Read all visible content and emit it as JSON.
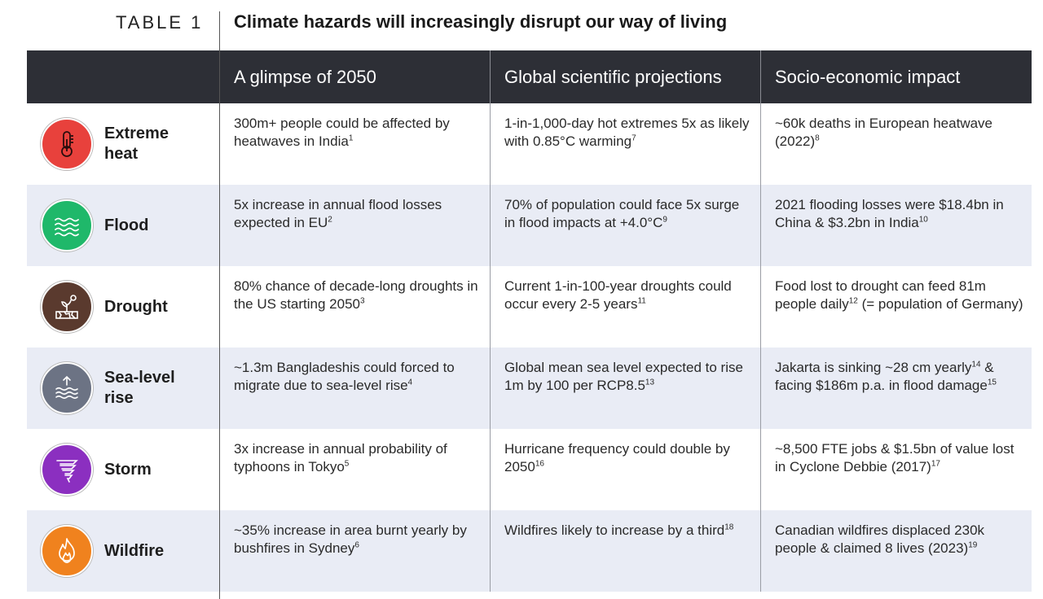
{
  "table_label": "TABLE 1",
  "title": "Climate hazards will increasingly disrupt our way of living",
  "headers": [
    "",
    "A glimpse of 2050",
    "Global scientific projections",
    "Socio-economic impact"
  ],
  "colors": {
    "header_bg": "#2d2f36",
    "row_shade": "#e9ecf5",
    "heat": "#e8413c",
    "flood": "#1fb86a",
    "drought": "#5a3a2e",
    "sea": "#6c7384",
    "storm": "#8b2fc0",
    "wildfire": "#f0821e"
  },
  "rows": [
    {
      "hazard": "Extreme heat",
      "icon": "thermometer-icon",
      "glimpse": "300m+ people could be affected by heatwaves in India",
      "glimpse_ref": "1",
      "projection": "1-in-1,000-day hot extremes 5x as likely with 0.85°C warming",
      "projection_ref": "7",
      "impact": "~60k deaths in European heatwave (2022)",
      "impact_ref": "8"
    },
    {
      "hazard": "Flood",
      "icon": "waves-icon",
      "glimpse": "5x increase in annual flood losses expected in EU",
      "glimpse_ref": "2",
      "projection": "70% of population could face 5x surge in flood impacts at +4.0°C",
      "projection_ref": "9",
      "impact": "2021 flooding losses were $18.4bn in China & $3.2bn in India",
      "impact_ref": "10"
    },
    {
      "hazard": "Drought",
      "icon": "cracked-earth-icon",
      "glimpse": "80% chance of decade-long droughts in the US starting 2050",
      "glimpse_ref": "3",
      "projection": "Current 1-in-100-year droughts could occur every 2-5 years",
      "projection_ref": "11",
      "impact": "Food lost to drought can feed 81m people daily",
      "impact_ref": "12",
      "impact_tail": " (= population of Germany)"
    },
    {
      "hazard": "Sea-level rise",
      "icon": "rising-water-icon",
      "glimpse": "~1.3m Bangladeshis could forced to migrate due to sea-level rise",
      "glimpse_ref": "4",
      "projection": "Global mean sea level expected to rise 1m by 100 per RCP8.5",
      "projection_ref": "13",
      "impact": "Jakarta is sinking ~28 cm yearly",
      "impact_ref": "14",
      "impact_tail": " & facing $186m p.a. in flood damage",
      "impact_tail_ref": "15"
    },
    {
      "hazard": "Storm",
      "icon": "tornado-icon",
      "glimpse": "3x increase in annual probability of typhoons in Tokyo",
      "glimpse_ref": "5",
      "projection": "Hurricane frequency could double by 2050",
      "projection_ref": "16",
      "impact": "~8,500 FTE jobs & $1.5bn of value lost in Cyclone Debbie (2017)",
      "impact_ref": "17"
    },
    {
      "hazard": "Wildfire",
      "icon": "flame-icon",
      "glimpse": "~35% increase in area burnt yearly by bushfires in Sydney",
      "glimpse_ref": "6",
      "projection": "Wildfires likely to increase by a third",
      "projection_ref": "18",
      "impact": "Canadian wildfires displaced 230k people & claimed 8 lives (2023)",
      "impact_ref": "19"
    }
  ]
}
